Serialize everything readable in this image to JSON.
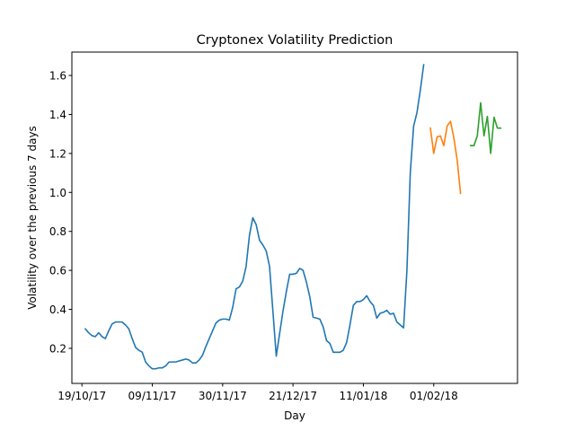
{
  "chart_data": {
    "type": "line",
    "title": "Cryptonex Volatility Prediction",
    "xlabel": "Day",
    "ylabel": "Volatility over the previous 7 days",
    "x_tick_labels": [
      "19/10/17",
      "09/11/17",
      "30/11/17",
      "21/12/17",
      "11/01/18",
      "01/02/18"
    ],
    "y_tick_labels": [
      "0.2",
      "0.4",
      "0.6",
      "0.8",
      "1.0",
      "1.2",
      "1.4",
      "1.6"
    ],
    "y_ticks": [
      0.2,
      0.4,
      0.6,
      0.8,
      1.0,
      1.2,
      1.4,
      1.6
    ],
    "xlim": [
      "2017-10-16",
      "2018-02-26"
    ],
    "ylim": [
      0.02,
      1.72
    ],
    "grid": false,
    "series": [
      {
        "color": "#1f77b4",
        "points": [
          [
            "2017-10-20",
            0.3
          ],
          [
            "2017-10-21",
            0.28
          ],
          [
            "2017-10-22",
            0.265
          ],
          [
            "2017-10-23",
            0.26
          ],
          [
            "2017-10-24",
            0.28
          ],
          [
            "2017-10-25",
            0.26
          ],
          [
            "2017-10-26",
            0.25
          ],
          [
            "2017-10-27",
            0.29
          ],
          [
            "2017-10-28",
            0.325
          ],
          [
            "2017-10-29",
            0.335
          ],
          [
            "2017-10-30",
            0.335
          ],
          [
            "2017-10-31",
            0.335
          ],
          [
            "2017-11-01",
            0.32
          ],
          [
            "2017-11-02",
            0.3
          ],
          [
            "2017-11-03",
            0.25
          ],
          [
            "2017-11-04",
            0.205
          ],
          [
            "2017-11-05",
            0.19
          ],
          [
            "2017-11-06",
            0.18
          ],
          [
            "2017-11-07",
            0.13
          ],
          [
            "2017-11-08",
            0.11
          ],
          [
            "2017-11-09",
            0.095
          ],
          [
            "2017-11-10",
            0.095
          ],
          [
            "2017-11-11",
            0.1
          ],
          [
            "2017-11-12",
            0.1
          ],
          [
            "2017-11-13",
            0.11
          ],
          [
            "2017-11-14",
            0.13
          ],
          [
            "2017-11-15",
            0.13
          ],
          [
            "2017-11-16",
            0.13
          ],
          [
            "2017-11-17",
            0.135
          ],
          [
            "2017-11-18",
            0.14
          ],
          [
            "2017-11-19",
            0.145
          ],
          [
            "2017-11-20",
            0.14
          ],
          [
            "2017-11-21",
            0.125
          ],
          [
            "2017-11-22",
            0.125
          ],
          [
            "2017-11-23",
            0.14
          ],
          [
            "2017-11-24",
            0.165
          ],
          [
            "2017-11-25",
            0.21
          ],
          [
            "2017-11-26",
            0.25
          ],
          [
            "2017-11-27",
            0.29
          ],
          [
            "2017-11-28",
            0.33
          ],
          [
            "2017-11-29",
            0.345
          ],
          [
            "2017-11-30",
            0.35
          ],
          [
            "2017-12-01",
            0.35
          ],
          [
            "2017-12-02",
            0.345
          ],
          [
            "2017-12-03",
            0.41
          ],
          [
            "2017-12-04",
            0.505
          ],
          [
            "2017-12-05",
            0.515
          ],
          [
            "2017-12-06",
            0.545
          ],
          [
            "2017-12-07",
            0.62
          ],
          [
            "2017-12-08",
            0.78
          ],
          [
            "2017-12-09",
            0.87
          ],
          [
            "2017-12-10",
            0.835
          ],
          [
            "2017-12-11",
            0.755
          ],
          [
            "2017-12-12",
            0.73
          ],
          [
            "2017-12-13",
            0.7
          ],
          [
            "2017-12-14",
            0.62
          ],
          [
            "2017-12-15",
            0.39
          ],
          [
            "2017-12-16",
            0.16
          ],
          [
            "2017-12-17",
            0.275
          ],
          [
            "2017-12-18",
            0.39
          ],
          [
            "2017-12-19",
            0.49
          ],
          [
            "2017-12-20",
            0.58
          ],
          [
            "2017-12-21",
            0.58
          ],
          [
            "2017-12-22",
            0.585
          ],
          [
            "2017-12-23",
            0.61
          ],
          [
            "2017-12-24",
            0.6
          ],
          [
            "2017-12-25",
            0.54
          ],
          [
            "2017-12-26",
            0.465
          ],
          [
            "2017-12-27",
            0.36
          ],
          [
            "2017-12-28",
            0.355
          ],
          [
            "2017-12-29",
            0.35
          ],
          [
            "2017-12-30",
            0.31
          ],
          [
            "2017-12-31",
            0.24
          ],
          [
            "2018-01-01",
            0.225
          ],
          [
            "2018-01-02",
            0.18
          ],
          [
            "2018-01-03",
            0.18
          ],
          [
            "2018-01-04",
            0.18
          ],
          [
            "2018-01-05",
            0.19
          ],
          [
            "2018-01-06",
            0.23
          ],
          [
            "2018-01-07",
            0.32
          ],
          [
            "2018-01-08",
            0.42
          ],
          [
            "2018-01-09",
            0.44
          ],
          [
            "2018-01-10",
            0.44
          ],
          [
            "2018-01-11",
            0.45
          ],
          [
            "2018-01-12",
            0.47
          ],
          [
            "2018-01-13",
            0.44
          ],
          [
            "2018-01-14",
            0.42
          ],
          [
            "2018-01-15",
            0.355
          ],
          [
            "2018-01-16",
            0.38
          ],
          [
            "2018-01-17",
            0.385
          ],
          [
            "2018-01-18",
            0.395
          ],
          [
            "2018-01-19",
            0.375
          ],
          [
            "2018-01-20",
            0.38
          ],
          [
            "2018-01-21",
            0.335
          ],
          [
            "2018-01-22",
            0.32
          ],
          [
            "2018-01-23",
            0.305
          ],
          [
            "2018-01-24",
            0.6
          ],
          [
            "2018-01-25",
            1.1
          ],
          [
            "2018-01-26",
            1.34
          ],
          [
            "2018-01-27",
            1.41
          ],
          [
            "2018-01-28",
            1.525
          ],
          [
            "2018-01-29",
            1.655
          ]
        ]
      },
      {
        "color": "#ff7f0e",
        "points": [
          [
            "2018-01-31",
            1.33
          ],
          [
            "2018-02-01",
            1.2
          ],
          [
            "2018-02-02",
            1.285
          ],
          [
            "2018-02-03",
            1.29
          ],
          [
            "2018-02-04",
            1.24
          ],
          [
            "2018-02-05",
            1.34
          ],
          [
            "2018-02-06",
            1.365
          ],
          [
            "2018-02-07",
            1.28
          ],
          [
            "2018-02-08",
            1.165
          ],
          [
            "2018-02-09",
            0.995
          ]
        ]
      },
      {
        "color": "#2ca02c",
        "points": [
          [
            "2018-02-12",
            1.24
          ],
          [
            "2018-02-13",
            1.24
          ],
          [
            "2018-02-14",
            1.29
          ],
          [
            "2018-02-15",
            1.46
          ],
          [
            "2018-02-16",
            1.29
          ],
          [
            "2018-02-17",
            1.39
          ],
          [
            "2018-02-18",
            1.2
          ],
          [
            "2018-02-19",
            1.385
          ],
          [
            "2018-02-20",
            1.33
          ],
          [
            "2018-02-21",
            1.33
          ]
        ]
      }
    ]
  }
}
